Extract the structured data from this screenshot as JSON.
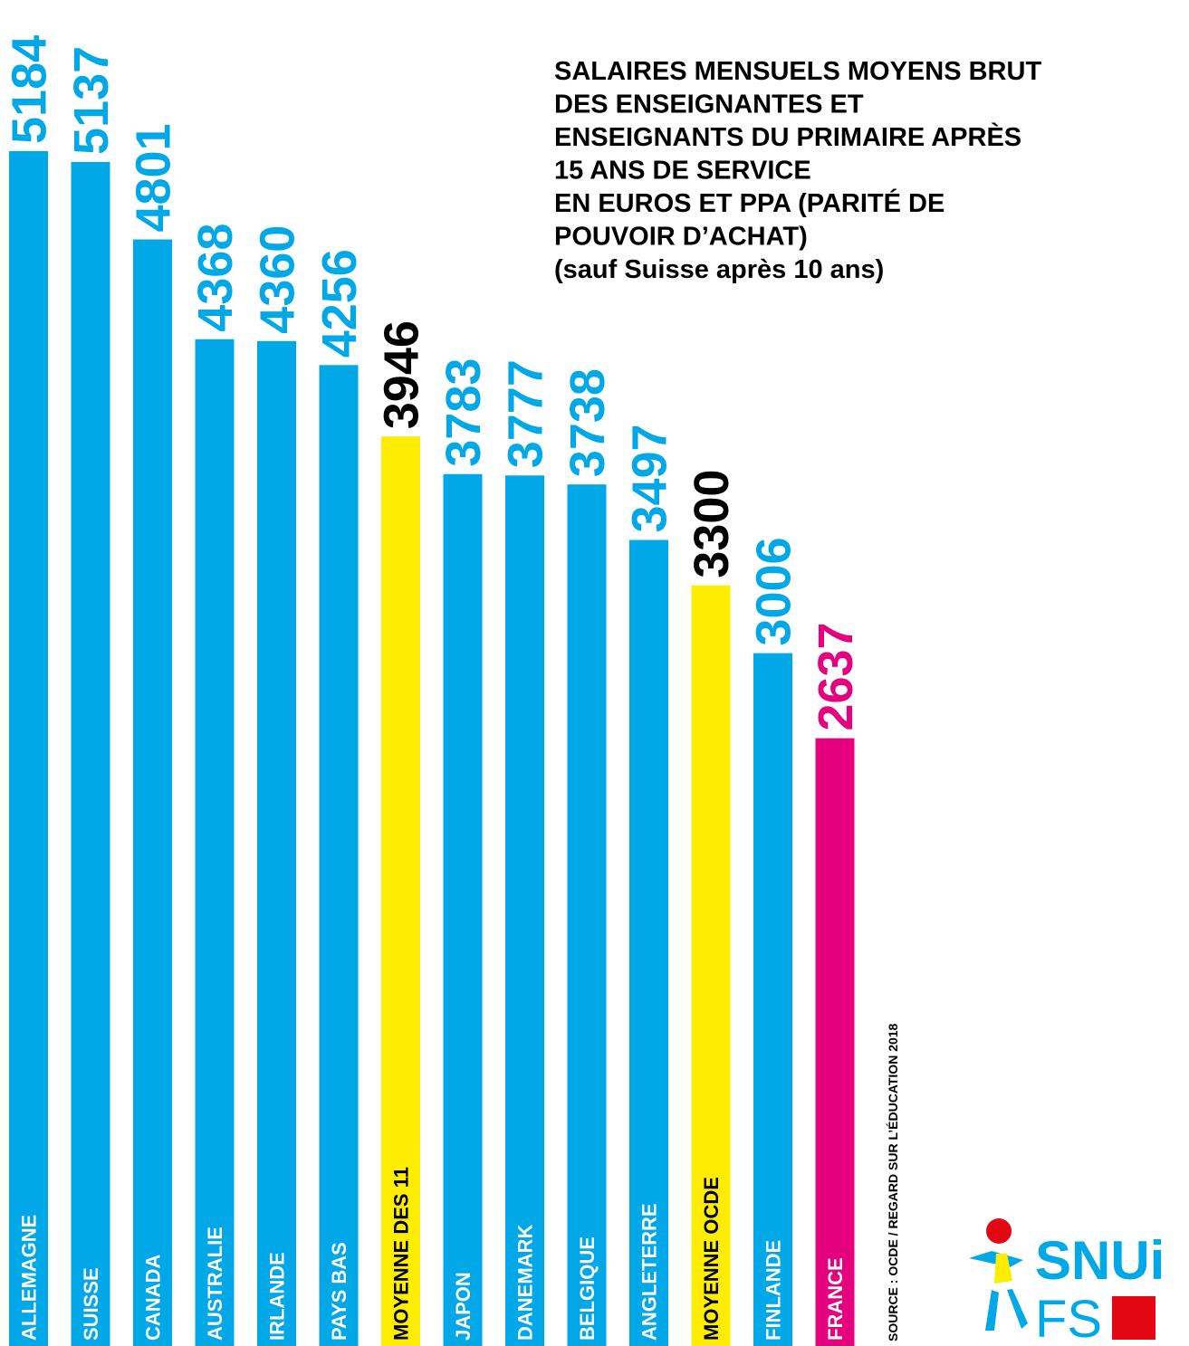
{
  "chart_data": {
    "type": "bar",
    "title": [
      "SALAIRES MENSUELS MOYENS BRUT",
      "DES ENSEIGNANTES ET",
      "ENSEIGNANTS DU PRIMAIRE APRÈS",
      "15 ANS DE SERVICE",
      "EN EUROS ET PPA (PARITÉ DE",
      "POUVOIR D’ACHAT)",
      "(sauf Suisse après 10 ans)"
    ],
    "categories": [
      "ALLEMAGNE",
      "SUISSE",
      "CANADA",
      "AUSTRALIE",
      "IRLANDE",
      "PAYS BAS",
      "MOYENNE DES 11",
      "JAPON",
      "DANEMARK",
      "BELGIQUE",
      "ANGLETERRE",
      "MOYENNE OCDE",
      "FINLANDE",
      "FRANCE"
    ],
    "values": [
      5184,
      5137,
      4801,
      4368,
      4360,
      4256,
      3946,
      3783,
      3777,
      3738,
      3497,
      3300,
      3006,
      2637
    ],
    "colors": [
      "#00a8e8",
      "#00a8e8",
      "#00a8e8",
      "#00a8e8",
      "#00a8e8",
      "#00a8e8",
      "#ffed00",
      "#00a8e8",
      "#00a8e8",
      "#00a8e8",
      "#00a8e8",
      "#ffed00",
      "#00a8e8",
      "#e5007e"
    ],
    "label_colors": [
      "#00a8e8",
      "#00a8e8",
      "#00a8e8",
      "#00a8e8",
      "#00a8e8",
      "#00a8e8",
      "#000000",
      "#00a8e8",
      "#00a8e8",
      "#00a8e8",
      "#00a8e8",
      "#000000",
      "#00a8e8",
      "#e5007e"
    ],
    "source": "SOURCE : OCDE / REGARD SUR L’ÉDUCATION 2018",
    "logo": [
      "SNUi",
      "FS"
    ]
  }
}
